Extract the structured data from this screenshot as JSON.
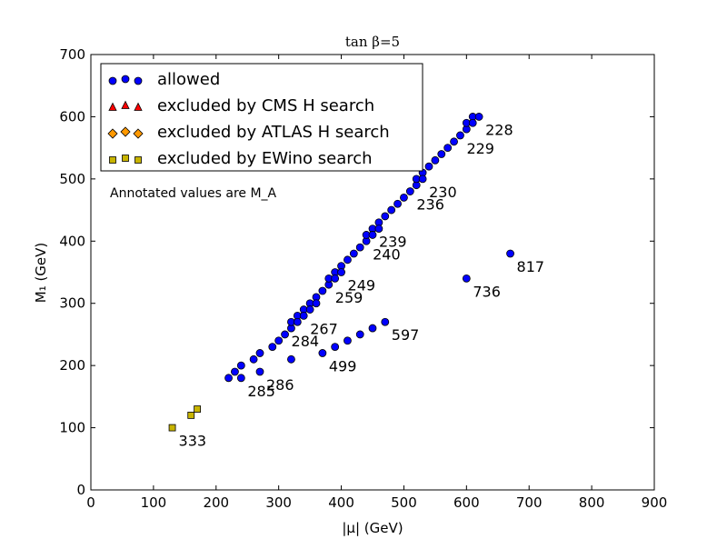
{
  "chart_data": {
    "type": "scatter",
    "title": "tan β=5",
    "xlabel": "|μ| (GeV)",
    "ylabel": "M₁ (GeV)",
    "xlim": [
      0,
      900
    ],
    "ylim": [
      0,
      700
    ],
    "xticks": [
      0,
      100,
      200,
      300,
      400,
      500,
      600,
      700,
      800,
      900
    ],
    "yticks": [
      0,
      100,
      200,
      300,
      400,
      500,
      600,
      700
    ],
    "grid": false,
    "legend_position": "top-left",
    "note": "Annotated values are M_A",
    "series": [
      {
        "name": "allowed",
        "marker": "circle",
        "color": "#0000ff",
        "points": [
          [
            220,
            180
          ],
          [
            230,
            190
          ],
          [
            240,
            200
          ],
          [
            240,
            180
          ],
          [
            260,
            210
          ],
          [
            270,
            220
          ],
          [
            270,
            190
          ],
          [
            290,
            230
          ],
          [
            300,
            240
          ],
          [
            310,
            250
          ],
          [
            320,
            260
          ],
          [
            320,
            270
          ],
          [
            320,
            210
          ],
          [
            330,
            280
          ],
          [
            330,
            270
          ],
          [
            340,
            290
          ],
          [
            340,
            280
          ],
          [
            350,
            300
          ],
          [
            350,
            290
          ],
          [
            360,
            310
          ],
          [
            360,
            300
          ],
          [
            370,
            320
          ],
          [
            380,
            330
          ],
          [
            380,
            340
          ],
          [
            390,
            350
          ],
          [
            390,
            340
          ],
          [
            400,
            360
          ],
          [
            400,
            350
          ],
          [
            410,
            370
          ],
          [
            420,
            380
          ],
          [
            430,
            390
          ],
          [
            440,
            400
          ],
          [
            440,
            410
          ],
          [
            450,
            420
          ],
          [
            450,
            410
          ],
          [
            460,
            430
          ],
          [
            460,
            420
          ],
          [
            470,
            440
          ],
          [
            480,
            450
          ],
          [
            490,
            460
          ],
          [
            500,
            470
          ],
          [
            510,
            480
          ],
          [
            520,
            490
          ],
          [
            520,
            500
          ],
          [
            530,
            510
          ],
          [
            530,
            500
          ],
          [
            540,
            520
          ],
          [
            550,
            530
          ],
          [
            560,
            540
          ],
          [
            570,
            550
          ],
          [
            580,
            560
          ],
          [
            590,
            570
          ],
          [
            600,
            580
          ],
          [
            600,
            590
          ],
          [
            610,
            600
          ],
          [
            610,
            590
          ],
          [
            620,
            600
          ],
          [
            370,
            220
          ],
          [
            390,
            230
          ],
          [
            410,
            240
          ],
          [
            430,
            250
          ],
          [
            450,
            260
          ],
          [
            470,
            270
          ],
          [
            600,
            340
          ],
          [
            670,
            380
          ]
        ]
      },
      {
        "name": "excluded by CMS H search",
        "marker": "triangle",
        "color": "#ff0000",
        "points": []
      },
      {
        "name": "excluded by ATLAS H search",
        "marker": "diamond",
        "color": "#ff9900",
        "points": []
      },
      {
        "name": "excluded by EWino search",
        "marker": "square",
        "color": "#c8b400",
        "points": [
          [
            130,
            100
          ],
          [
            160,
            120
          ],
          [
            170,
            130
          ]
        ]
      }
    ],
    "annotations": [
      {
        "text": "228",
        "x": 620,
        "y": 600
      },
      {
        "text": "229",
        "x": 590,
        "y": 570
      },
      {
        "text": "230",
        "x": 530,
        "y": 500
      },
      {
        "text": "236",
        "x": 510,
        "y": 480
      },
      {
        "text": "239",
        "x": 450,
        "y": 420
      },
      {
        "text": "240",
        "x": 440,
        "y": 400
      },
      {
        "text": "249",
        "x": 400,
        "y": 350
      },
      {
        "text": "259",
        "x": 380,
        "y": 330
      },
      {
        "text": "267",
        "x": 340,
        "y": 280
      },
      {
        "text": "284",
        "x": 310,
        "y": 260
      },
      {
        "text": "285",
        "x": 240,
        "y": 180
      },
      {
        "text": "286",
        "x": 270,
        "y": 190
      },
      {
        "text": "499",
        "x": 370,
        "y": 220
      },
      {
        "text": "597",
        "x": 470,
        "y": 270
      },
      {
        "text": "736",
        "x": 600,
        "y": 340
      },
      {
        "text": "817",
        "x": 670,
        "y": 380
      },
      {
        "text": "333",
        "x": 130,
        "y": 100
      }
    ]
  }
}
